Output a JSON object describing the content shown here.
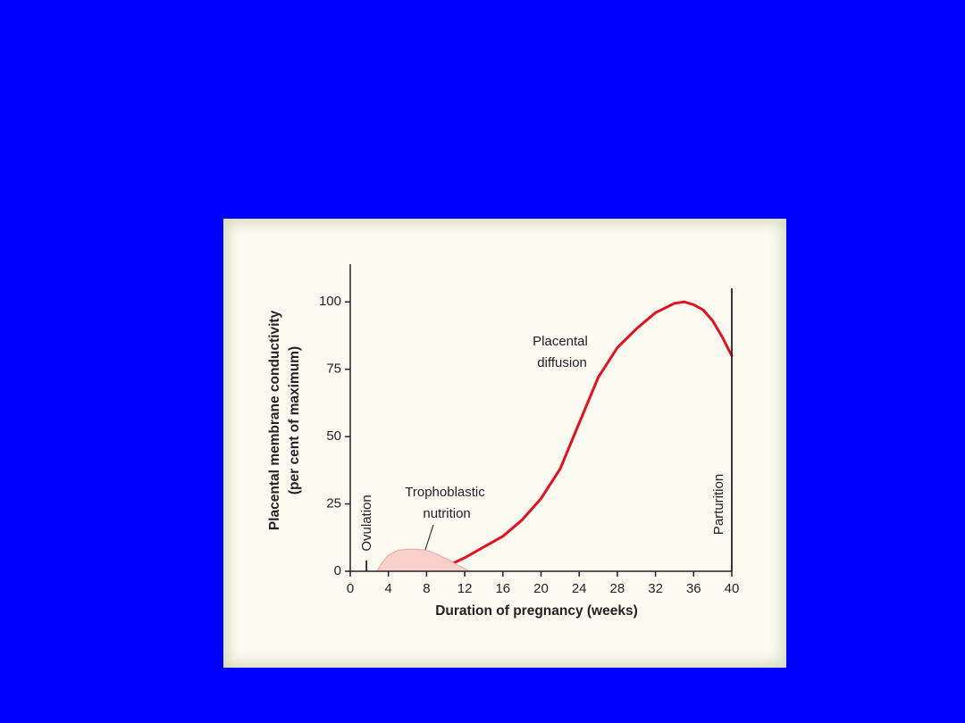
{
  "chart_data": {
    "type": "line",
    "xlabel": "Duration of pregnancy (weeks)",
    "ylabel": [
      "Placental membrane conductivity",
      "(per cent of maximum)"
    ],
    "xlim": [
      0,
      40
    ],
    "ylim": [
      0,
      114
    ],
    "xticks": [
      0,
      4,
      8,
      12,
      16,
      20,
      24,
      28,
      32,
      36,
      40
    ],
    "yticks": [
      0,
      25,
      50,
      75,
      100
    ],
    "series": [
      {
        "name": "Placental diffusion",
        "color": "#e8101e",
        "fill": false,
        "x": [
          10.5,
          12,
          14,
          16,
          18,
          20,
          22,
          24,
          26,
          28,
          30,
          32,
          34,
          35,
          36,
          37,
          38,
          39,
          40
        ],
        "values": [
          2.5,
          5,
          9,
          13,
          19,
          27,
          38,
          55,
          72,
          83,
          90,
          96,
          99.5,
          100,
          99,
          97,
          93,
          87,
          80
        ]
      },
      {
        "name": "Trophoblastic nutrition",
        "color": "#f9d0cc",
        "fill": true,
        "x": [
          2.8,
          3.3,
          4,
          5,
          6,
          7,
          8,
          9,
          10,
          11,
          12,
          12.5
        ],
        "values": [
          0,
          3,
          6,
          7.8,
          8.2,
          8.2,
          7.8,
          6.5,
          4.8,
          2.8,
          1,
          0
        ]
      }
    ],
    "markers": [
      {
        "label": "Ovulation",
        "x": 1.7,
        "height": 4
      },
      {
        "label": "Parturition",
        "x": 40,
        "height": 105
      }
    ]
  }
}
